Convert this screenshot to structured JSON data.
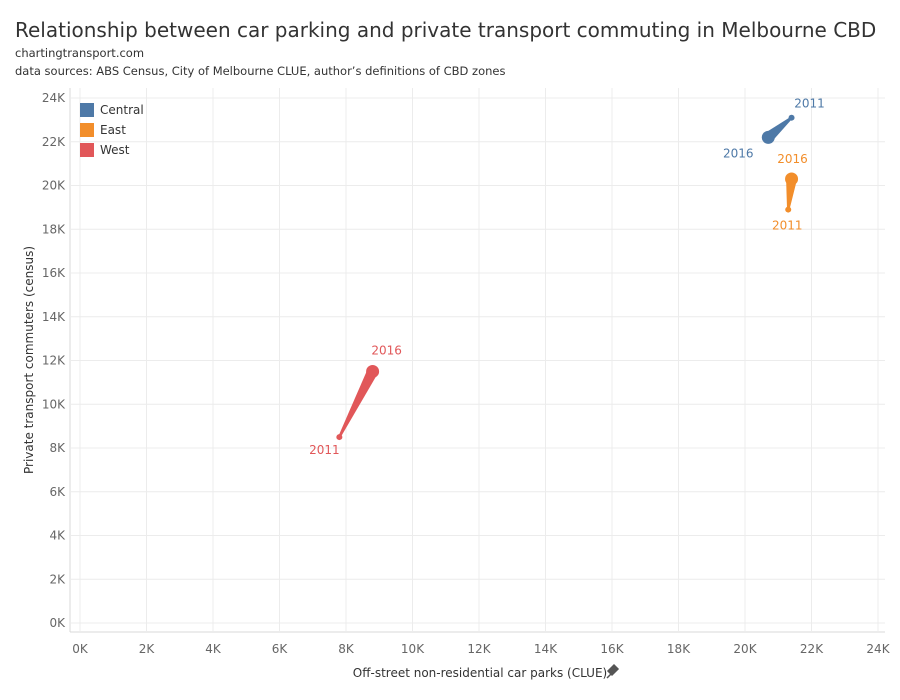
{
  "header": {
    "title": "Relationship between car parking and private transport commuting in Melbourne CBD",
    "subtitle1": "chartingtransport.com",
    "subtitle2": "data sources: ABS Census, City of Melbourne CLUE, author’s definitions of CBD zones"
  },
  "chart_data": {
    "type": "scatter",
    "title": "Relationship between car parking and private transport commuting in Melbourne CBD",
    "xlabel": "Off-street non-residential car parks (CLUE)",
    "ylabel": "Private transport commuters (census)",
    "xlim": [
      0,
      24000
    ],
    "ylim": [
      0,
      24000
    ],
    "x_ticks": [
      0,
      2000,
      4000,
      6000,
      8000,
      10000,
      12000,
      14000,
      16000,
      18000,
      20000,
      22000,
      24000
    ],
    "x_tick_labels": [
      "0K",
      "2K",
      "4K",
      "6K",
      "8K",
      "10K",
      "12K",
      "14K",
      "16K",
      "18K",
      "20K",
      "22K",
      "24K"
    ],
    "y_ticks": [
      0,
      2000,
      4000,
      6000,
      8000,
      10000,
      12000,
      14000,
      16000,
      18000,
      20000,
      22000,
      24000
    ],
    "y_tick_labels": [
      "0K",
      "2K",
      "4K",
      "6K",
      "8K",
      "10K",
      "12K",
      "14K",
      "16K",
      "18K",
      "20K",
      "22K",
      "24K"
    ],
    "grid": true,
    "legend_position": "top-left",
    "series": [
      {
        "name": "Central",
        "color": "#4e79a7",
        "points": [
          {
            "year": "2011",
            "x": 21400,
            "y": 23100
          },
          {
            "year": "2016",
            "x": 20700,
            "y": 22200
          }
        ]
      },
      {
        "name": "East",
        "color": "#f28e2b",
        "points": [
          {
            "year": "2011",
            "x": 21300,
            "y": 18900
          },
          {
            "year": "2016",
            "x": 21400,
            "y": 20300
          }
        ]
      },
      {
        "name": "West",
        "color": "#e15759",
        "points": [
          {
            "year": "2011",
            "x": 7800,
            "y": 8500
          },
          {
            "year": "2016",
            "x": 8800,
            "y": 11500
          }
        ]
      }
    ]
  },
  "xaxis_pin_icon": "pin-icon"
}
